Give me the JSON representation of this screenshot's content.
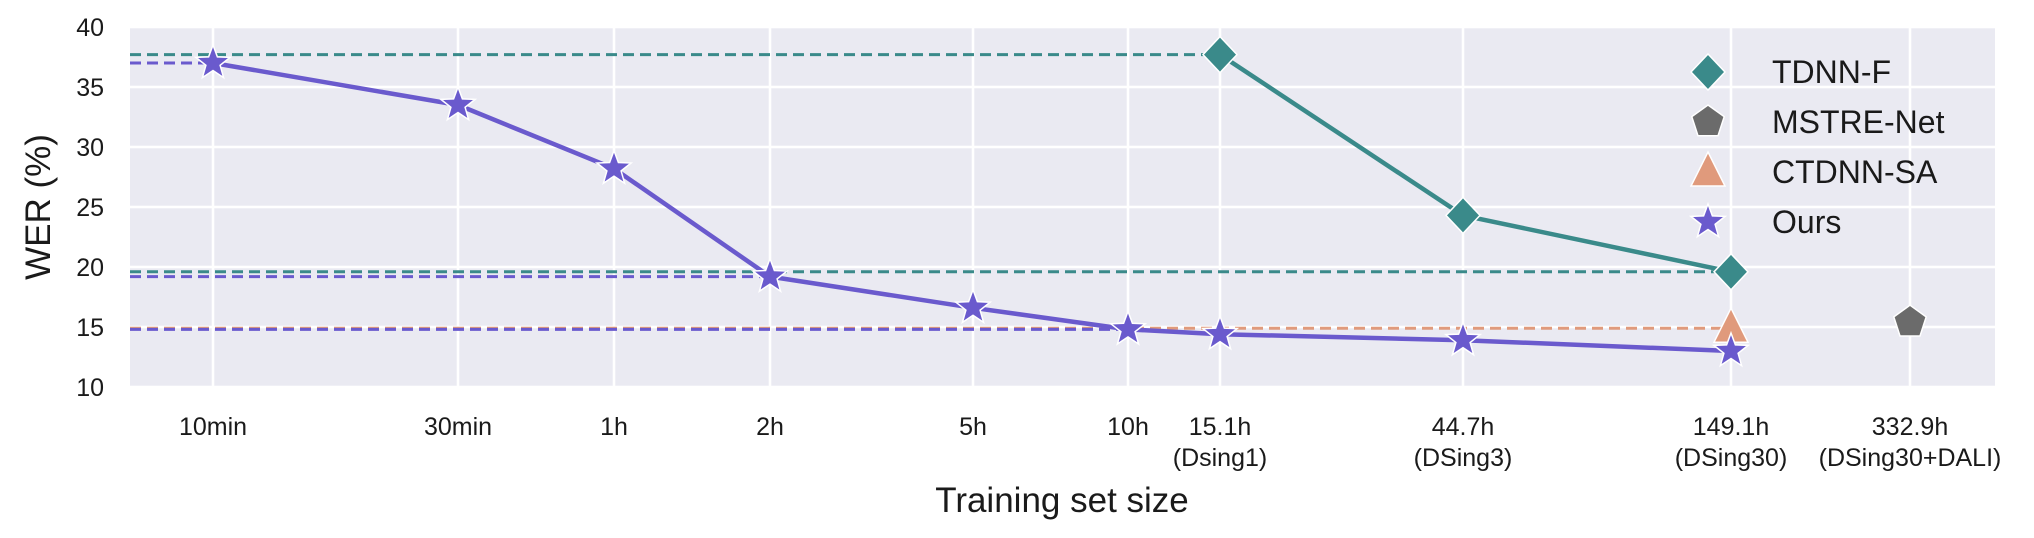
{
  "chart_data": {
    "type": "line",
    "title": "",
    "xlabel": "Training set size",
    "ylabel": "WER (%)",
    "ylim": [
      10,
      40
    ],
    "yticks": [
      10,
      15,
      20,
      25,
      30,
      35,
      40
    ],
    "grid": true,
    "legend_position": "top-right",
    "categories": [
      {
        "label": "10min",
        "sublabel": ""
      },
      {
        "label": "30min",
        "sublabel": ""
      },
      {
        "label": "1h",
        "sublabel": ""
      },
      {
        "label": "2h",
        "sublabel": ""
      },
      {
        "label": "5h",
        "sublabel": ""
      },
      {
        "label": "10h",
        "sublabel": ""
      },
      {
        "label": "15.1h",
        "sublabel": "(Dsing1)"
      },
      {
        "label": "44.7h",
        "sublabel": "(DSing3)"
      },
      {
        "label": "149.1h",
        "sublabel": "(DSing30)"
      },
      {
        "label": "332.9h",
        "sublabel": "(DSing30+DALI)"
      }
    ],
    "series": [
      {
        "name": "TDNN-F",
        "marker": "diamond",
        "color": "#3a8a8a",
        "points": [
          [
            6,
            37.7
          ],
          [
            7,
            24.3
          ],
          [
            8,
            19.6
          ]
        ]
      },
      {
        "name": "MSTRE-Net",
        "marker": "pentagon",
        "color": "#6b6b6b",
        "points": [
          [
            9,
            15.4
          ]
        ]
      },
      {
        "name": "CTDNN-SA",
        "marker": "triangle",
        "color": "#e09a7c",
        "points": [
          [
            8,
            14.9
          ]
        ]
      },
      {
        "name": "Ours",
        "marker": "star",
        "color": "#6a5acd",
        "points": [
          [
            0,
            37.0
          ],
          [
            1,
            33.5
          ],
          [
            2,
            28.2
          ],
          [
            3,
            19.2
          ],
          [
            4,
            16.6
          ],
          [
            5,
            14.8
          ],
          [
            6,
            14.4
          ],
          [
            7,
            13.9
          ],
          [
            8,
            13.0
          ]
        ]
      }
    ],
    "reference_lines": [
      {
        "y": 37.7,
        "color": "#3a8a8a",
        "x_end_index": 6
      },
      {
        "y": 37.0,
        "color": "#6a5acd",
        "x_end_index": 0
      },
      {
        "y": 19.6,
        "color": "#3a8a8a",
        "x_end_index": 8
      },
      {
        "y": 19.2,
        "color": "#6a5acd",
        "x_end_index": 3
      },
      {
        "y": 14.9,
        "color": "#e09a7c",
        "x_end_index": 8
      },
      {
        "y": 14.8,
        "color": "#6a5acd",
        "x_end_index": 5
      }
    ]
  }
}
